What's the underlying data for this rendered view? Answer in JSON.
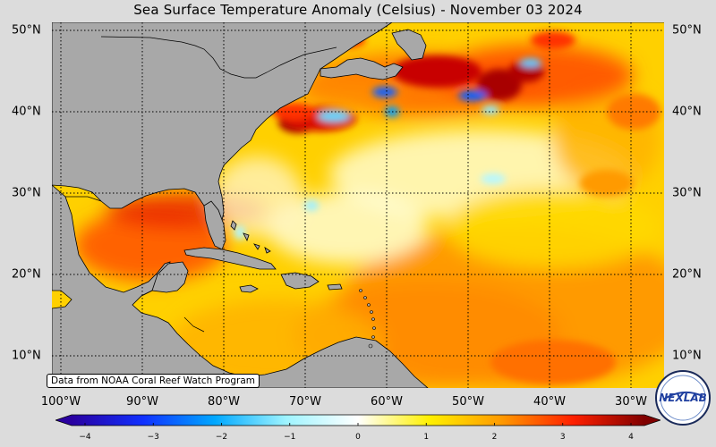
{
  "title": "Sea Surface Temperature Anomaly (Celsius) - November 03 2024",
  "latitude_labels": [
    "50°N",
    "40°N",
    "30°N",
    "20°N",
    "10°N"
  ],
  "longitude_labels": [
    "100°W",
    "90°W",
    "80°W",
    "70°W",
    "60°W",
    "50°W",
    "40°W",
    "30°W"
  ],
  "source_note": "Data from NOAA Coral Reef Watch Program",
  "colorbar": {
    "ticks": [
      "−4",
      "−3",
      "−2",
      "−1",
      "0",
      "1",
      "2",
      "3",
      "4"
    ],
    "colors": [
      "#2a00a0",
      "#1030ff",
      "#00a8ff",
      "#9ff4ff",
      "#ffffff",
      "#fff000",
      "#ff9a00",
      "#ff2000",
      "#800000"
    ]
  },
  "logo": {
    "text": "NEXLAB"
  },
  "colors": {
    "land": "#a8a8a8",
    "ocean_warm": "#ffaa00",
    "ocean_hot": "#e01000",
    "ocean_cool": "#ffffff",
    "ocean_cold": "#30a0ff"
  }
}
